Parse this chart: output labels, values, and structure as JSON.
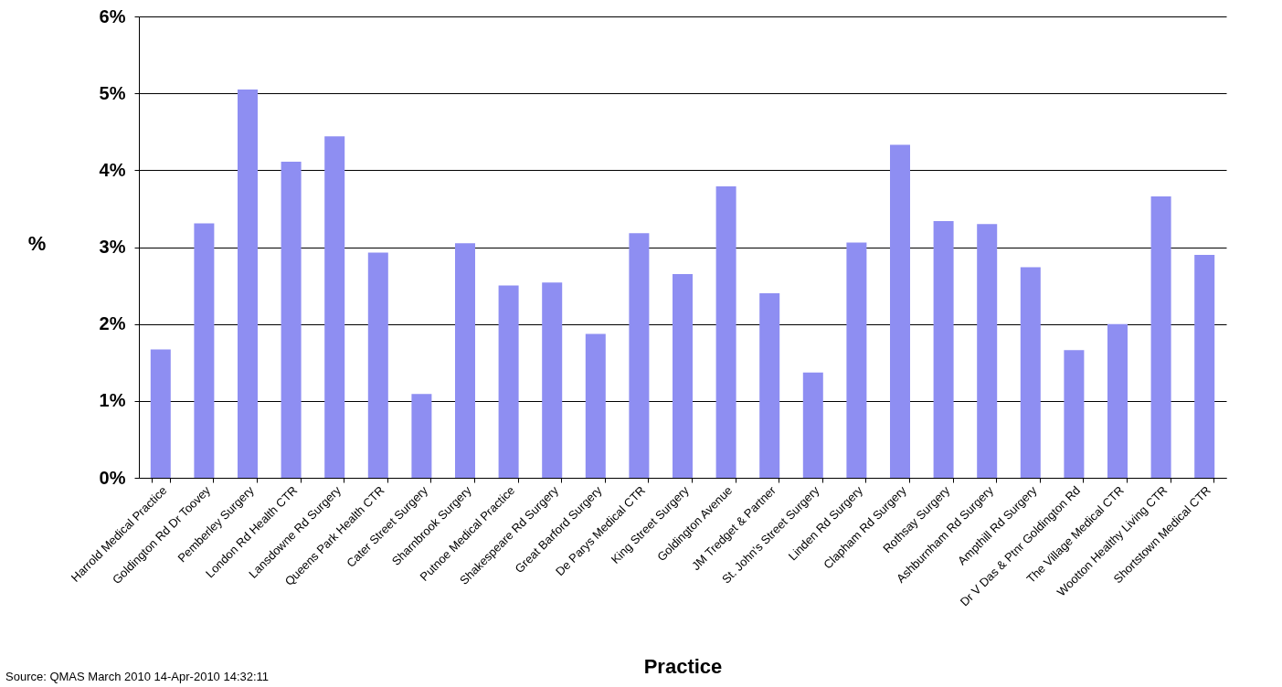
{
  "chart_data": {
    "type": "bar",
    "xlabel": "Practice",
    "ylabel": "%",
    "categories": [
      "Harrold Medical Practice",
      "Goldington Rd Dr Toovey",
      "Pemberley Surgery",
      "London Rd Health CTR",
      "Lansdowne Rd Surgery",
      "Queens Park Health CTR",
      "Cater Street Surgery",
      "Sharnbrook Surgery",
      "Putnoe Medical Practice",
      "Shakespeare Rd Surgery",
      "Great Barford Surgery",
      "De Parys Medical CTR",
      "King Street Surgery",
      "Goldington Avenue",
      "JM Tredget & Partner",
      "St. John's Street Surgery",
      "Linden Rd Surgery",
      "Clapham Rd Surgery",
      "Rothsay Surgery",
      "Ashburnham Rd Surgery",
      "Ampthill Rd Surgery",
      "Dr V Das & Ptnr Goldington Rd",
      "The Village Medical CTR",
      "Wootton Healthy Living CTR",
      "Shortstown Medical CTR"
    ],
    "values": [
      1.67,
      3.31,
      5.05,
      4.11,
      4.44,
      2.93,
      1.09,
      3.05,
      2.5,
      2.54,
      1.87,
      3.18,
      2.65,
      3.79,
      2.4,
      1.37,
      3.06,
      4.33,
      3.34,
      3.3,
      2.74,
      1.66,
      2.0,
      3.66,
      2.9
    ],
    "color": "#8e8ef2",
    "ylim": [
      0,
      6
    ],
    "yticks": [
      {
        "value": 0,
        "label": "0%"
      },
      {
        "value": 1,
        "label": "1%"
      },
      {
        "value": 2,
        "label": "2%"
      },
      {
        "value": 3,
        "label": "3%"
      },
      {
        "value": 4,
        "label": "4%"
      },
      {
        "value": 5,
        "label": "5%"
      },
      {
        "value": 6,
        "label": "6%"
      }
    ],
    "grid": "y",
    "annotations": [
      "Source: QMAS March 2010 14-Apr-2010 14:32:11"
    ]
  }
}
